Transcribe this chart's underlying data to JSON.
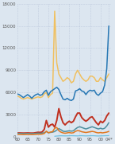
{
  "background_color": "#dce6f0",
  "lines": {
    "blue": {
      "color": "#2878b4",
      "years": [
        1960,
        1961,
        1962,
        1963,
        1964,
        1965,
        1966,
        1967,
        1968,
        1969,
        1970,
        1971,
        1972,
        1973,
        1974,
        1975,
        1976,
        1977,
        1978,
        1979,
        1980,
        1981,
        1982,
        1983,
        1984,
        1985,
        1986,
        1987,
        1988,
        1989,
        1990,
        1991,
        1992,
        1993,
        1994,
        1995,
        1996,
        1997,
        1998,
        1999,
        2000,
        2001,
        2002,
        2003,
        2004
      ],
      "values": [
        5800,
        5700,
        5500,
        5300,
        5500,
        5700,
        5500,
        5200,
        5500,
        5700,
        5800,
        5600,
        5700,
        6100,
        6300,
        5600,
        6100,
        6300,
        6500,
        6700,
        6400,
        5700,
        5100,
        5000,
        5200,
        5000,
        4900,
        5100,
        6200,
        6300,
        6500,
        6200,
        6100,
        5700,
        6100,
        6300,
        6200,
        6300,
        5800,
        5600,
        5900,
        6100,
        7000,
        9200,
        15000
      ]
    },
    "orange_light": {
      "color": "#f0c060",
      "years": [
        1960,
        1961,
        1962,
        1963,
        1964,
        1965,
        1966,
        1967,
        1968,
        1969,
        1970,
        1971,
        1972,
        1973,
        1974,
        1975,
        1976,
        1977,
        1978,
        1979,
        1980,
        1981,
        1982,
        1983,
        1984,
        1985,
        1986,
        1987,
        1988,
        1989,
        1990,
        1991,
        1992,
        1993,
        1994,
        1995,
        1996,
        1997,
        1998,
        1999,
        2000,
        2001,
        2002,
        2003,
        2004
      ],
      "values": [
        5500,
        5400,
        5200,
        5100,
        5200,
        5300,
        5200,
        5100,
        5200,
        5300,
        5400,
        5300,
        5400,
        5800,
        6000,
        5300,
        5700,
        5900,
        17000,
        10000,
        8500,
        8000,
        7500,
        7700,
        8000,
        7800,
        7300,
        7500,
        8500,
        9000,
        8500,
        8000,
        7700,
        7500,
        7700,
        8200,
        8200,
        8000,
        7500,
        7500,
        8000,
        7700,
        7500,
        8000,
        8500
      ]
    },
    "red": {
      "color": "#c03020",
      "years": [
        1960,
        1961,
        1962,
        1963,
        1964,
        1965,
        1966,
        1967,
        1968,
        1969,
        1970,
        1971,
        1972,
        1973,
        1974,
        1975,
        1976,
        1977,
        1978,
        1979,
        1980,
        1981,
        1982,
        1983,
        1984,
        1985,
        1986,
        1987,
        1988,
        1989,
        1990,
        1991,
        1992,
        1993,
        1994,
        1995,
        1996,
        1997,
        1998,
        1999,
        2000,
        2001,
        2002,
        2003,
        2004
      ],
      "values": [
        500,
        510,
        500,
        490,
        500,
        510,
        500,
        490,
        500,
        550,
        600,
        580,
        640,
        1000,
        2200,
        1300,
        1600,
        1700,
        1300,
        2200,
        3800,
        2700,
        1900,
        1600,
        1900,
        2100,
        1900,
        2100,
        2700,
        3200,
        3200,
        2600,
        2300,
        2100,
        2300,
        2600,
        2700,
        2300,
        1900,
        1600,
        2100,
        1900,
        2200,
        2800,
        3200
      ]
    },
    "teal": {
      "color": "#5090a0",
      "years": [
        1960,
        1961,
        1962,
        1963,
        1964,
        1965,
        1966,
        1967,
        1968,
        1969,
        1970,
        1971,
        1972,
        1973,
        1974,
        1975,
        1976,
        1977,
        1978,
        1979,
        1980,
        1981,
        1982,
        1983,
        1984,
        1985,
        1986,
        1987,
        1988,
        1989,
        1990,
        1991,
        1992,
        1993,
        1994,
        1995,
        1996,
        1997,
        1998,
        1999,
        2000,
        2001,
        2002,
        2003,
        2004
      ],
      "values": [
        450,
        450,
        430,
        420,
        430,
        440,
        430,
        420,
        430,
        450,
        480,
        460,
        480,
        550,
        700,
        530,
        580,
        620,
        700,
        900,
        1100,
        950,
        750,
        700,
        750,
        800,
        750,
        800,
        1050,
        1250,
        1350,
        1250,
        1150,
        1050,
        1150,
        1250,
        1350,
        1250,
        1150,
        1050,
        1150,
        1050,
        1150,
        1450,
        1900
      ]
    },
    "orange": {
      "color": "#e07820",
      "years": [
        1960,
        1961,
        1962,
        1963,
        1964,
        1965,
        1966,
        1967,
        1968,
        1969,
        1970,
        1971,
        1972,
        1973,
        1974,
        1975,
        1976,
        1977,
        1978,
        1979,
        1980,
        1981,
        1982,
        1983,
        1984,
        1985,
        1986,
        1987,
        1988,
        1989,
        1990,
        1991,
        1992,
        1993,
        1994,
        1995,
        1996,
        1997,
        1998,
        1999,
        2000,
        2001,
        2002,
        2003,
        2004
      ],
      "values": [
        320,
        310,
        300,
        290,
        300,
        310,
        300,
        290,
        300,
        320,
        340,
        330,
        350,
        430,
        750,
        530,
        630,
        680,
        1150,
        1250,
        820,
        620,
        520,
        470,
        520,
        570,
        500,
        540,
        730,
        830,
        780,
        670,
        620,
        570,
        620,
        670,
        720,
        670,
        570,
        520,
        570,
        520,
        570,
        620,
        720
      ]
    },
    "light_blue": {
      "color": "#70c0e0",
      "years": [
        1978,
        1979,
        1980,
        1981,
        1982,
        1983,
        1984,
        1985,
        1986,
        1987,
        1988,
        1989,
        1990,
        1991,
        1992,
        1993,
        1994,
        1995,
        1996,
        1997,
        1998,
        1999,
        2000,
        2001,
        2002,
        2003,
        2004
      ],
      "values": [
        60,
        90,
        110,
        130,
        120,
        110,
        120,
        130,
        140,
        130,
        120,
        110,
        130,
        140,
        120,
        110,
        120,
        130,
        140,
        130,
        110,
        100,
        110,
        120,
        130,
        140,
        150
      ]
    }
  },
  "ytick_vals": [
    0,
    3000,
    6000,
    9000,
    12000,
    15000,
    18000
  ],
  "ytick_labels": [
    "0",
    "3000",
    "6000",
    "9000",
    "12000",
    "15000",
    "18000"
  ],
  "xtick_vals": [
    1960,
    1965,
    1970,
    1975,
    1980,
    1985,
    1990,
    1995,
    2000,
    2004
  ],
  "xtick_labels": [
    "60",
    "65",
    "70",
    "75",
    "80",
    "85",
    "90",
    "95",
    "00",
    "04*"
  ],
  "xlim": [
    1960,
    2005
  ],
  "ylim": [
    0,
    18000
  ],
  "linewidths": {
    "blue": 1.1,
    "orange_light": 1.1,
    "red": 1.4,
    "teal": 1.1,
    "orange": 1.1,
    "light_blue": 0.9
  },
  "line_order": [
    "orange_light",
    "blue",
    "red",
    "teal",
    "orange",
    "light_blue"
  ]
}
